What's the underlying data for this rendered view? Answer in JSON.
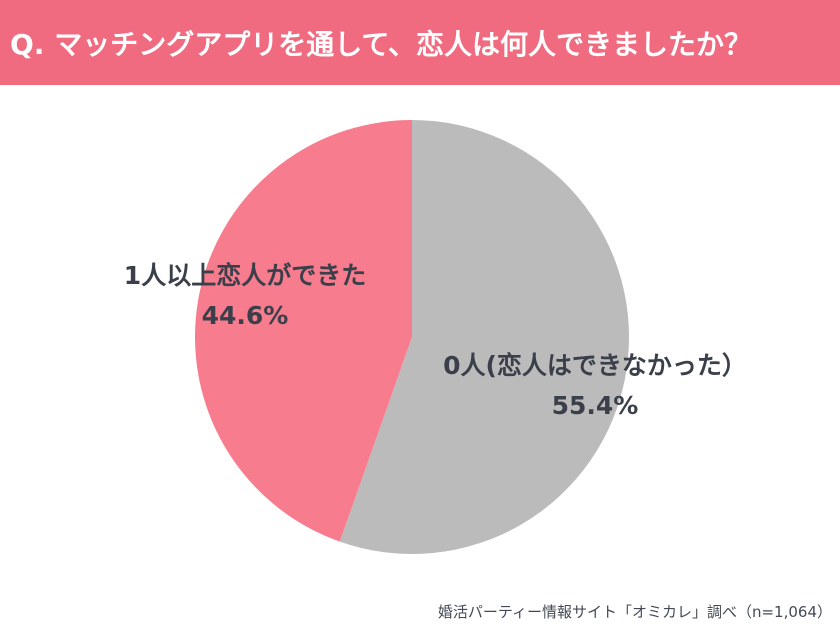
{
  "header": {
    "title": "Q. マッチングアプリを通して、恋人は何人できましたか？"
  },
  "chart_data": {
    "type": "pie",
    "title": "Q. マッチングアプリを通して、恋人は何人できましたか？",
    "slices": [
      {
        "label": "0人(恋人はできなかった）",
        "value": 55.4,
        "value_label": "55.4%",
        "color": "#bbbbbb"
      },
      {
        "label": "1人以上恋人ができた",
        "value": 44.6,
        "value_label": "44.6%",
        "color": "#f67c8e"
      }
    ]
  },
  "footer": {
    "source": "婚活パーティー情報サイト「オミカレ」調べ（n=1,064）"
  },
  "colors": {
    "header_bg": "#f06b7f",
    "label_text": "#3a3f4a"
  }
}
